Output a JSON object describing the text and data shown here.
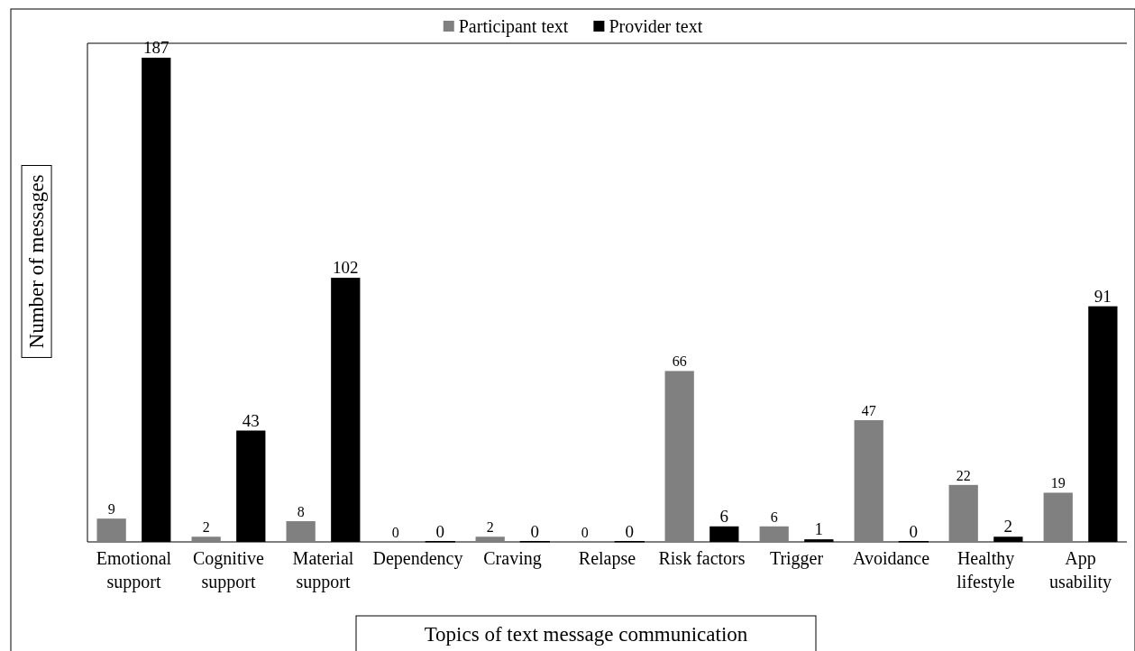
{
  "chart_data": {
    "type": "bar",
    "xlabel": "Topics of text message communication",
    "ylabel": "Number of messages",
    "categories": [
      "Emotional support",
      "Cognitive support",
      "Material support",
      "Dependency",
      "Craving",
      "Relapse",
      "Risk factors",
      "Trigger",
      "Avoidance",
      "Healthy lifestyle",
      "App usability"
    ],
    "series": [
      {
        "name": "Participant text",
        "color": "#808080",
        "values": [
          9,
          2,
          8,
          0,
          2,
          0,
          66,
          6,
          47,
          22,
          19
        ]
      },
      {
        "name": "Provider text",
        "color": "#000000",
        "values": [
          187,
          43,
          102,
          0,
          0,
          0,
          6,
          1,
          0,
          2,
          91
        ]
      }
    ],
    "data_labels": true,
    "legend": "top"
  }
}
